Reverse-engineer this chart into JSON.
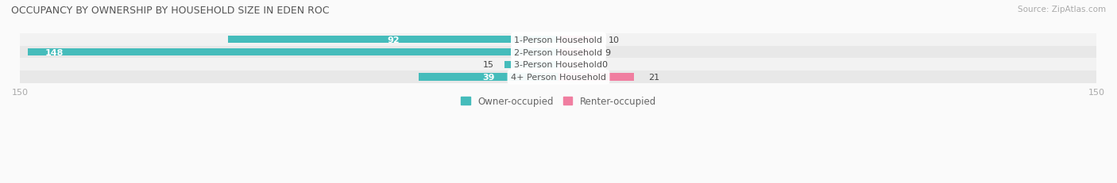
{
  "title": "OCCUPANCY BY OWNERSHIP BY HOUSEHOLD SIZE IN EDEN ROC",
  "source": "Source: ZipAtlas.com",
  "categories": [
    "1-Person Household",
    "2-Person Household",
    "3-Person Household",
    "4+ Person Household"
  ],
  "owner_values": [
    92,
    148,
    15,
    39
  ],
  "renter_values": [
    10,
    9,
    0,
    21
  ],
  "owner_color": "#45BCBB",
  "renter_color": "#F07EA0",
  "renter_color_light": "#F5AABF",
  "row_bg_colors": [
    "#F2F2F2",
    "#E8E8E8",
    "#F2F2F2",
    "#E8E8E8"
  ],
  "fig_bg_color": "#FAFAFA",
  "x_max": 150,
  "title_color": "#555555",
  "axis_label_color": "#AAAAAA",
  "cat_label_color": "#555555",
  "val_label_dark": "#444444",
  "legend_owner": "Owner-occupied",
  "legend_renter": "Renter-occupied"
}
